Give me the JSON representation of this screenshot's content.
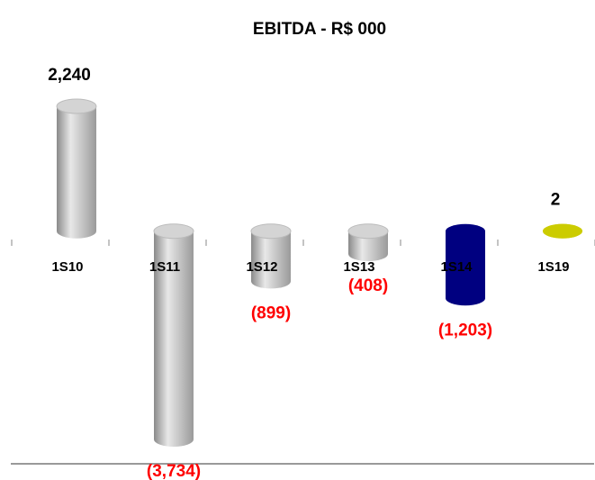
{
  "chart_data": {
    "type": "bar",
    "title": "EBITDA - R$ 000",
    "categories": [
      "1S10",
      "1S11",
      "1S12",
      "1S13",
      "1S14",
      "1S19"
    ],
    "values": [
      2240,
      -3734,
      -899,
      -408,
      -1203,
      2
    ],
    "value_labels": [
      "2,240",
      "(3,734)",
      "(899)",
      "(408)",
      "(1,203)",
      "2"
    ],
    "colors": [
      "#c0c0c0",
      "#c0c0c0",
      "#c0c0c0",
      "#c0c0c0",
      "#000080",
      "#cccc00"
    ]
  }
}
